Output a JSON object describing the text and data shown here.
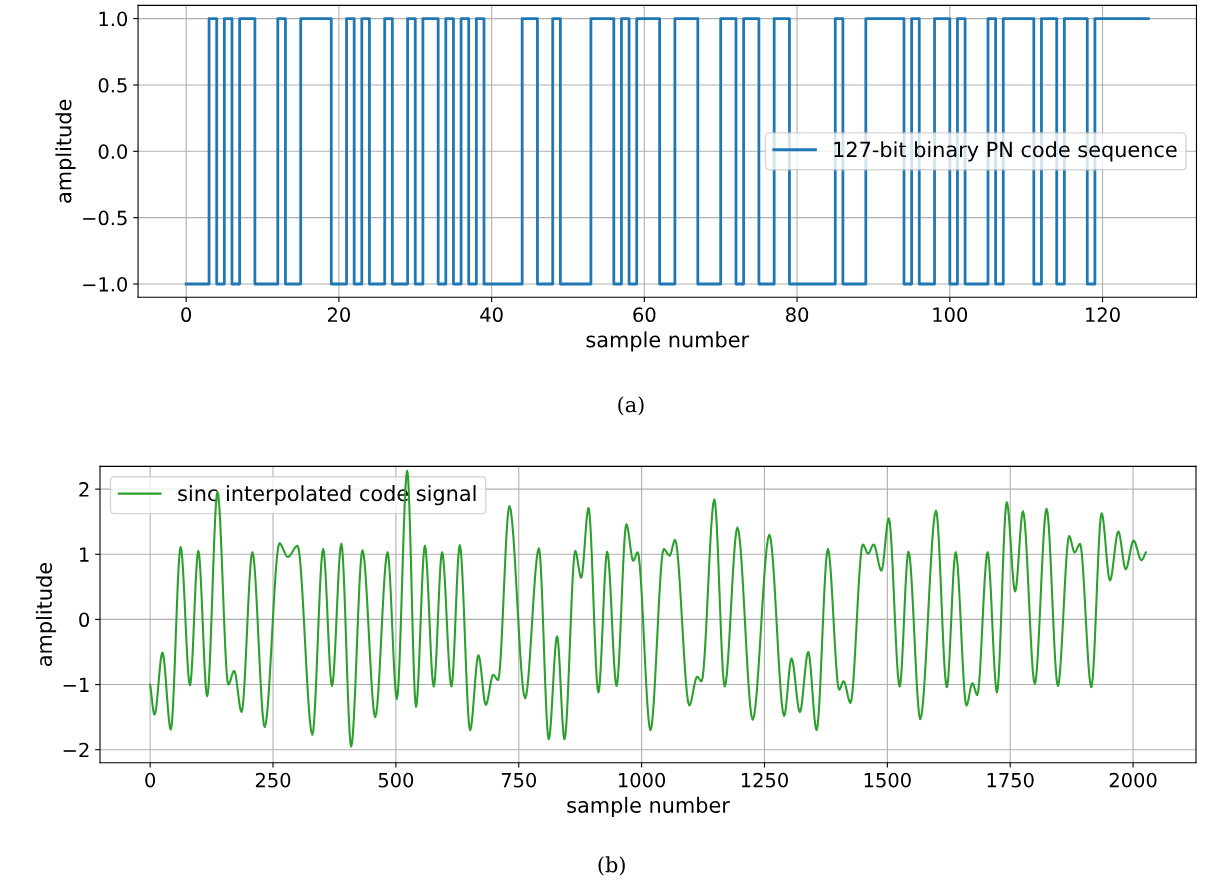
{
  "chart_data": [
    {
      "type": "step",
      "xlabel": "sample number",
      "ylabel": "amplitude",
      "annotations": [
        "(a)"
      ],
      "x": [
        0,
        1,
        2,
        3,
        4,
        5,
        6,
        7,
        8,
        9,
        10,
        11,
        12,
        13,
        14,
        15,
        16,
        17,
        18,
        19,
        20,
        21,
        22,
        23,
        24,
        25,
        26,
        27,
        28,
        29,
        30,
        31,
        32,
        33,
        34,
        35,
        36,
        37,
        38,
        39,
        40,
        41,
        42,
        43,
        44,
        45,
        46,
        47,
        48,
        49,
        50,
        51,
        52,
        53,
        54,
        55,
        56,
        57,
        58,
        59,
        60,
        61,
        62,
        63,
        64,
        65,
        66,
        67,
        68,
        69,
        70,
        71,
        72,
        73,
        74,
        75,
        76,
        77,
        78,
        79,
        80,
        81,
        82,
        83,
        84,
        85,
        86,
        87,
        88,
        89,
        90,
        91,
        92,
        93,
        94,
        95,
        96,
        97,
        98,
        99,
        100,
        101,
        102,
        103,
        104,
        105,
        106,
        107,
        108,
        109,
        110,
        111,
        112,
        113,
        114,
        115,
        116,
        117,
        118,
        119,
        120,
        121,
        122,
        123,
        124,
        125,
        126
      ],
      "series": [
        {
          "name": "127-bit binary PN code sequence",
          "color": "#1f77b4",
          "values": [
            -1,
            -1,
            -1,
            -1,
            1,
            -1,
            1,
            -1,
            1,
            1,
            -1,
            -1,
            -1,
            1,
            -1,
            -1,
            1,
            1,
            1,
            1,
            -1,
            -1,
            1,
            -1,
            1,
            -1,
            -1,
            1,
            -1,
            -1,
            1,
            -1,
            1,
            1,
            -1,
            1,
            -1,
            1,
            -1,
            1,
            -1,
            -1,
            -1,
            -1,
            -1,
            1,
            1,
            -1,
            -1,
            1,
            -1,
            -1,
            -1,
            -1,
            1,
            1,
            1,
            -1,
            1,
            -1,
            1,
            1,
            1,
            -1,
            -1,
            1,
            1,
            1,
            -1,
            -1,
            -1,
            1,
            1,
            -1,
            1,
            1,
            -1,
            -1,
            1,
            1,
            -1,
            -1,
            -1,
            -1,
            -1,
            -1,
            1,
            -1,
            -1,
            -1,
            1,
            1,
            1,
            1,
            1,
            -1,
            1,
            -1,
            -1,
            1,
            1,
            -1,
            1,
            -1,
            -1,
            -1,
            1,
            -1,
            1,
            1,
            1,
            1,
            -1,
            1,
            1,
            -1,
            1,
            1,
            1,
            -1,
            1,
            1,
            1,
            1,
            1,
            1,
            1
          ]
        }
      ],
      "xlim": [
        -6.3,
        132.3
      ],
      "xticks": [
        0,
        20,
        40,
        60,
        80,
        100,
        120
      ],
      "ylim": [
        -1.1,
        1.1
      ],
      "yticks": [
        {
          "value": -1.0,
          "label": "−1.0"
        },
        {
          "value": -0.5,
          "label": "−0.5"
        },
        {
          "value": 0.0,
          "label": "0.0"
        },
        {
          "value": 0.5,
          "label": "0.5"
        },
        {
          "value": 1.0,
          "label": "1.0"
        }
      ],
      "grid": true,
      "legend": "right"
    },
    {
      "type": "line",
      "xlabel": "sample number",
      "ylabel": "amplitude",
      "annotations": [
        "(b)"
      ],
      "series": [
        {
          "name": "sinc interpolated code signal",
          "color": "#2ca02c",
          "x": [
            0,
            9,
            25,
            42,
            62,
            81,
            98,
            116,
            137,
            159,
            171,
            186,
            208,
            233,
            263,
            280,
            300,
            330,
            352,
            370,
            389,
            409,
            432,
            458,
            483,
            502,
            523,
            541,
            559,
            577,
            594,
            613,
            630,
            651,
            668,
            683,
            698,
            708,
            731,
            763,
            791,
            811,
            828,
            843,
            865,
            877,
            892,
            912,
            930,
            949,
            969,
            983,
            992,
            1018,
            1045,
            1057,
            1068,
            1097,
            1113,
            1122,
            1148,
            1169,
            1195,
            1226,
            1260,
            1290,
            1305,
            1322,
            1339,
            1356,
            1379,
            1402,
            1411,
            1425,
            1450,
            1461,
            1472,
            1488,
            1503,
            1525,
            1543,
            1567,
            1599,
            1621,
            1639,
            1661,
            1673,
            1683,
            1704,
            1723,
            1743,
            1760,
            1776,
            1800,
            1824,
            1847,
            1870,
            1881,
            1892,
            1915,
            1936,
            1953,
            1970,
            1985,
            2001,
            2017,
            2026
          ],
          "values": [
            -1.0,
            -1.46,
            -0.51,
            -1.69,
            1.11,
            -1.01,
            1.05,
            -1.18,
            1.96,
            -1.0,
            -0.79,
            -1.42,
            1.03,
            -1.65,
            1.17,
            0.96,
            1.13,
            -1.77,
            1.08,
            -1.02,
            1.16,
            -1.95,
            1.06,
            -1.5,
            1.03,
            -1.22,
            2.28,
            -1.34,
            1.13,
            -1.03,
            1.03,
            -1.03,
            1.14,
            -1.7,
            -0.55,
            -1.31,
            -0.85,
            -0.93,
            1.74,
            -1.21,
            1.09,
            -1.84,
            -0.26,
            -1.84,
            1.05,
            0.64,
            1.71,
            -1.12,
            1.04,
            -1.02,
            1.46,
            0.9,
            1.03,
            -1.7,
            1.08,
            0.98,
            1.22,
            -1.32,
            -0.88,
            -0.95,
            1.84,
            -1.03,
            1.41,
            -1.54,
            1.3,
            -1.48,
            -0.6,
            -1.42,
            -0.5,
            -1.7,
            1.08,
            -1.08,
            -0.95,
            -1.28,
            1.15,
            1.01,
            1.15,
            0.75,
            1.55,
            -1.03,
            1.04,
            -1.53,
            1.67,
            -1.04,
            1.03,
            -1.32,
            -0.98,
            -1.16,
            1.03,
            -1.12,
            1.8,
            0.43,
            1.66,
            -0.99,
            1.7,
            -1.02,
            1.28,
            1.03,
            1.16,
            -1.04,
            1.63,
            0.6,
            1.35,
            0.77,
            1.21,
            0.91,
            1.03
          ]
        }
      ],
      "xlim": [
        -102,
        2128
      ],
      "xticks": [
        0,
        250,
        500,
        750,
        1000,
        1250,
        1500,
        1750,
        2000
      ],
      "ylim": [
        -2.2,
        2.35
      ],
      "yticks": [
        {
          "value": -2,
          "label": "−2"
        },
        {
          "value": -1,
          "label": "−1"
        },
        0,
        1,
        2
      ],
      "grid": true,
      "legend": "top left"
    }
  ]
}
